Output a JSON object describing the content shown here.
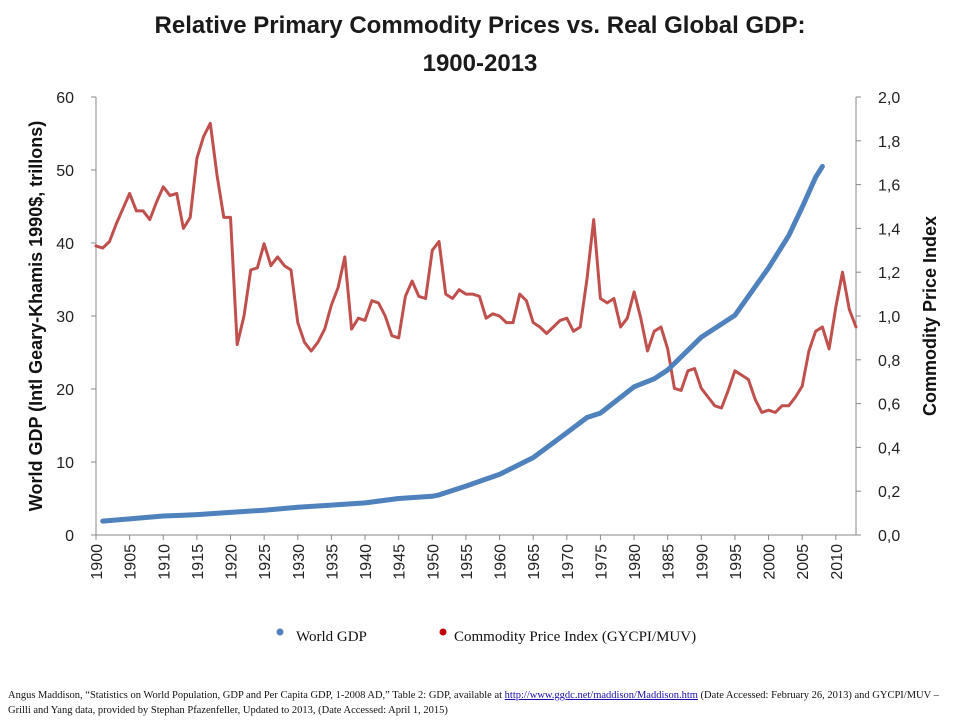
{
  "chart_data": {
    "type": "line",
    "title": "Relative Primary Commodity Prices vs. Real Global GDP:",
    "title_line2": "1900-2013",
    "ylabel_left": "World GDP (Intl Geary-Khamis 1990$,  trillons)",
    "ylabel_right": "Commodity Price Index",
    "ylim_left": [
      0,
      60
    ],
    "ylim_right": [
      0.0,
      2.0
    ],
    "xlim": [
      1900,
      2013
    ],
    "x_ticks": [
      "1900",
      "1905",
      "1910",
      "1915",
      "1920",
      "1925",
      "1930",
      "1935",
      "1940",
      "1945",
      "1950",
      "1955",
      "1960",
      "1965",
      "1970",
      "1975",
      "1980",
      "1985",
      "1990",
      "1995",
      "2000",
      "2005",
      "2010"
    ],
    "y_ticks_left": [
      "0",
      "10",
      "20",
      "30",
      "40",
      "50",
      "60"
    ],
    "y_ticks_right": [
      "0,0",
      "0,2",
      "0,4",
      "0,6",
      "0,8",
      "1,0",
      "1,2",
      "1,4",
      "1,6",
      "1,8",
      "2,0"
    ],
    "grid": false,
    "legend_position": "bottom",
    "series": [
      {
        "name": "World GDP",
        "axis": "left",
        "color": "#4f81bd",
        "x": [
          1901,
          1905,
          1910,
          1913,
          1915,
          1920,
          1925,
          1930,
          1935,
          1940,
          1945,
          1950,
          1951,
          1955,
          1960,
          1965,
          1970,
          1973,
          1975,
          1980,
          1983,
          1985,
          1990,
          1995,
          2000,
          2003,
          2005,
          2007,
          2008
        ],
        "values": [
          1.9,
          2.2,
          2.6,
          2.7,
          2.8,
          3.1,
          3.4,
          3.8,
          4.1,
          4.4,
          5.0,
          5.3,
          5.5,
          6.7,
          8.3,
          10.6,
          14.0,
          16.1,
          16.7,
          20.3,
          21.4,
          22.6,
          27.1,
          30.1,
          36.6,
          41.0,
          44.9,
          49.0,
          50.5
        ]
      },
      {
        "name": "Commodity Price Index (GYCPI/MUV)",
        "axis": "right",
        "color": "#c0504d",
        "x": [
          1900,
          1901,
          1902,
          1903,
          1904,
          1905,
          1906,
          1907,
          1908,
          1909,
          1910,
          1911,
          1912,
          1913,
          1914,
          1915,
          1916,
          1917,
          1918,
          1919,
          1920,
          1921,
          1922,
          1923,
          1924,
          1925,
          1926,
          1927,
          1928,
          1929,
          1930,
          1931,
          1932,
          1933,
          1934,
          1935,
          1936,
          1937,
          1938,
          1939,
          1940,
          1941,
          1942,
          1943,
          1944,
          1945,
          1946,
          1947,
          1948,
          1949,
          1950,
          1951,
          1952,
          1953,
          1954,
          1955,
          1956,
          1957,
          1958,
          1959,
          1960,
          1961,
          1962,
          1963,
          1964,
          1965,
          1966,
          1967,
          1968,
          1969,
          1970,
          1971,
          1972,
          1973,
          1974,
          1975,
          1976,
          1977,
          1978,
          1979,
          1980,
          1981,
          1982,
          1983,
          1984,
          1985,
          1986,
          1987,
          1988,
          1989,
          1990,
          1991,
          1992,
          1993,
          1994,
          1995,
          1996,
          1997,
          1998,
          1999,
          2000,
          2001,
          2002,
          2003,
          2004,
          2005,
          2006,
          2007,
          2008,
          2009,
          2010,
          2011,
          2012,
          2013
        ],
        "values": [
          1.32,
          1.31,
          1.34,
          1.42,
          1.49,
          1.56,
          1.48,
          1.48,
          1.44,
          1.52,
          1.59,
          1.55,
          1.56,
          1.4,
          1.45,
          1.72,
          1.82,
          1.88,
          1.64,
          1.45,
          1.45,
          0.87,
          1.0,
          1.21,
          1.22,
          1.33,
          1.23,
          1.27,
          1.23,
          1.21,
          0.97,
          0.88,
          0.84,
          0.88,
          0.94,
          1.05,
          1.13,
          1.27,
          0.94,
          0.99,
          0.98,
          1.07,
          1.06,
          1.0,
          0.91,
          0.9,
          1.09,
          1.16,
          1.09,
          1.08,
          1.3,
          1.34,
          1.1,
          1.08,
          1.12,
          1.1,
          1.1,
          1.09,
          0.99,
          1.01,
          1.0,
          0.97,
          0.97,
          1.1,
          1.07,
          0.97,
          0.95,
          0.92,
          0.95,
          0.98,
          0.99,
          0.93,
          0.95,
          1.17,
          1.44,
          1.08,
          1.06,
          1.08,
          0.95,
          0.99,
          1.11,
          0.99,
          0.84,
          0.93,
          0.95,
          0.85,
          0.67,
          0.66,
          0.75,
          0.76,
          0.67,
          0.63,
          0.59,
          0.58,
          0.66,
          0.75,
          0.73,
          0.71,
          0.62,
          0.56,
          0.57,
          0.56,
          0.59,
          0.59,
          0.63,
          0.68,
          0.84,
          0.93,
          0.95,
          0.85,
          1.04,
          1.2,
          1.03,
          0.95
        ]
      }
    ]
  },
  "source_note": {
    "text_before_link": "Angus Maddison, “Statistics on World Population, GDP and Per Capita GDP, 1-2008 AD,”  Table 2: GDP,  available at ",
    "link_text": "http://www.ggdc.net/maddison/Maddison.htm",
    "text_after_link": " (Date Accessed:  February 26, 2013) and GYCPI/MUV – Grilli  and Yang data, provided by Stephan Pfazenfeller, Updated to 2013,  (Date Accessed:  April 1, 2015)"
  }
}
